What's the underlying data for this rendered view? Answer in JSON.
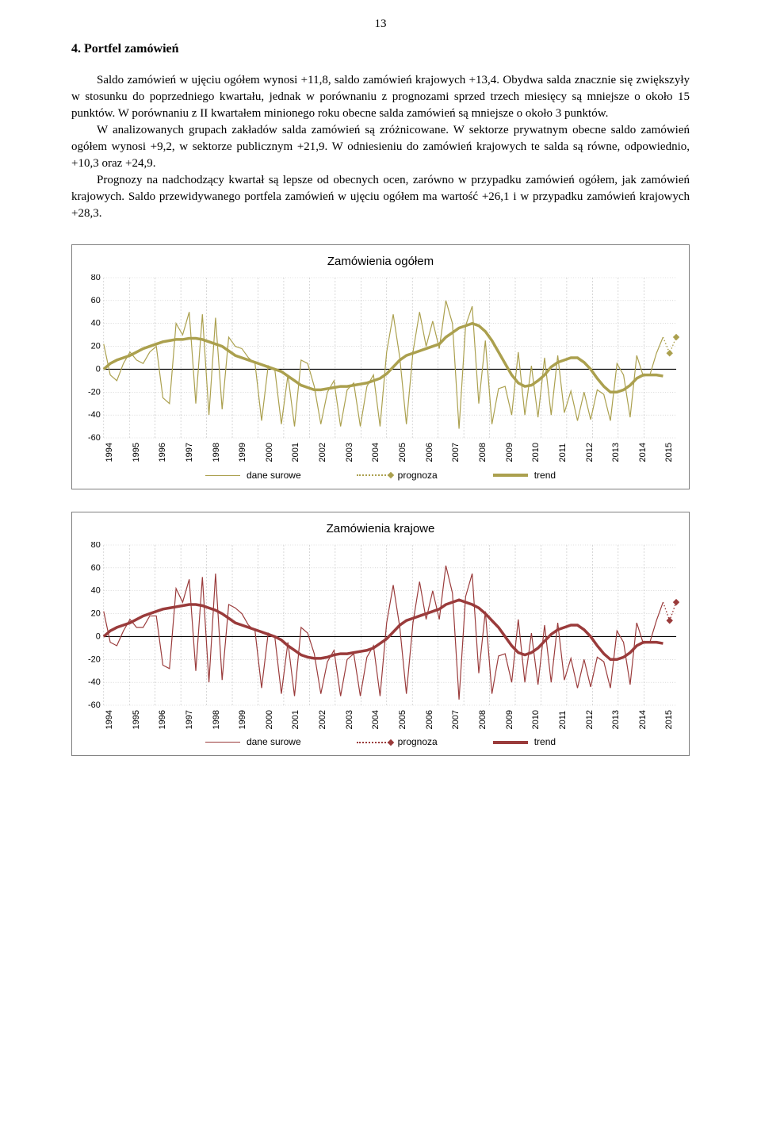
{
  "page_number": "13",
  "section_title": "4. Portfel zamówień",
  "paragraphs": [
    "Saldo zamówień w ujęciu ogółem wynosi +11,8, saldo zamówień krajowych +13,4. Obydwa salda znacznie się zwiększyły w stosunku do poprzedniego kwartału, jednak w porównaniu z prognozami sprzed trzech miesięcy są mniejsze o około 15 punktów. W porównaniu z II kwartałem minionego roku obecne salda zamówień są mniejsze o około 3 punktów.",
    "W analizowanych grupach zakładów salda zamówień są zróżnicowane. W sektorze prywatnym obecne saldo zamówień ogółem wynosi +9,2, w sektorze publicznym +21,9. W odniesieniu do zamówień krajowych te salda są równe, odpowiednio, +10,3 oraz +24,9.",
    "Prognozy na nadchodzący kwartał są lepsze od obecnych ocen, zarówno w przypadku zamówień ogółem, jak zamówień krajowych. Saldo przewidywanego portfela zamówień w ujęciu ogółem ma wartość +26,1 i w przypadku zamówień krajowych +28,3."
  ],
  "charts": [
    {
      "id": "chart1",
      "title": "Zamówienia ogółem",
      "type": "line",
      "colors": {
        "line": "#aba04e",
        "trend": "#aba04e",
        "forecast": "#aba04e",
        "grid": "#bfbfbf",
        "axis": "#000000",
        "bg": "#ffffff"
      },
      "ylim": [
        -60,
        80
      ],
      "yticks": [
        80,
        60,
        40,
        20,
        0,
        -20,
        -40,
        -60
      ],
      "years": [
        "1994",
        "1995",
        "1996",
        "1997",
        "1998",
        "1999",
        "2000",
        "2001",
        "2002",
        "2003",
        "2004",
        "2005",
        "2006",
        "2007",
        "2008",
        "2009",
        "2010",
        "2011",
        "2012",
        "2013",
        "2014",
        "2015"
      ],
      "raw": [
        22,
        -5,
        -10,
        5,
        15,
        8,
        5,
        15,
        20,
        -25,
        -30,
        40,
        30,
        50,
        -30,
        48,
        -40,
        45,
        -35,
        28,
        20,
        18,
        10,
        5,
        -45,
        3,
        0,
        -48,
        -5,
        -50,
        8,
        5,
        -15,
        -48,
        -20,
        -10,
        -50,
        -18,
        -12,
        -50,
        -15,
        -5,
        -50,
        15,
        48,
        10,
        -48,
        15,
        50,
        20,
        42,
        18,
        60,
        40,
        -52,
        38,
        55,
        -30,
        25,
        -48,
        -17,
        -15,
        -40,
        15,
        -40,
        3,
        -42,
        10,
        -40,
        12,
        -38,
        -19,
        -45,
        -20,
        -44,
        -18,
        -22,
        -45,
        5,
        -5,
        -42,
        12,
        -6,
        -5,
        14,
        28
      ],
      "trend": [
        0,
        5,
        8,
        10,
        12,
        15,
        18,
        20,
        22,
        24,
        25,
        26,
        26,
        27,
        27,
        26,
        24,
        22,
        20,
        16,
        12,
        10,
        8,
        6,
        4,
        2,
        0,
        -2,
        -6,
        -10,
        -14,
        -16,
        -18,
        -18,
        -17,
        -16,
        -15,
        -15,
        -14,
        -13,
        -12,
        -10,
        -8,
        -4,
        2,
        8,
        12,
        14,
        16,
        18,
        20,
        22,
        28,
        32,
        36,
        38,
        40,
        38,
        33,
        25,
        15,
        5,
        -5,
        -12,
        -15,
        -14,
        -10,
        -5,
        2,
        6,
        8,
        10,
        10,
        6,
        0,
        -8,
        -15,
        -20,
        -20,
        -18,
        -14,
        -8,
        -5,
        -5,
        -5,
        -6
      ],
      "forecast": [
        14,
        28
      ]
    },
    {
      "id": "chart2",
      "title": "Zamówienia krajowe",
      "type": "line",
      "colors": {
        "line": "#9a3b3b",
        "trend": "#9a3b3b",
        "forecast": "#9a3b3b",
        "grid": "#bfbfbf",
        "axis": "#000000",
        "bg": "#ffffff"
      },
      "ylim": [
        -60,
        80
      ],
      "yticks": [
        80,
        60,
        40,
        20,
        0,
        -20,
        -40,
        -60
      ],
      "years": [
        "1994",
        "1995",
        "1996",
        "1997",
        "1998",
        "1999",
        "2000",
        "2001",
        "2002",
        "2003",
        "2004",
        "2005",
        "2006",
        "2007",
        "2008",
        "2009",
        "2010",
        "2011",
        "2012",
        "2013",
        "2014",
        "2015"
      ],
      "raw": [
        22,
        -5,
        -8,
        5,
        15,
        8,
        8,
        18,
        18,
        -25,
        -28,
        42,
        30,
        50,
        -30,
        52,
        -40,
        55,
        -38,
        28,
        25,
        20,
        10,
        5,
        -45,
        3,
        0,
        -50,
        -5,
        -52,
        8,
        3,
        -15,
        -50,
        -22,
        -12,
        -52,
        -20,
        -15,
        -52,
        -18,
        -8,
        -52,
        12,
        45,
        8,
        -50,
        12,
        48,
        15,
        40,
        15,
        62,
        38,
        -55,
        35,
        55,
        -32,
        22,
        -50,
        -17,
        -15,
        -40,
        15,
        -40,
        3,
        -42,
        10,
        -40,
        12,
        -38,
        -19,
        -45,
        -20,
        -44,
        -18,
        -22,
        -45,
        5,
        -5,
        -42,
        12,
        -6,
        -5,
        14,
        30
      ],
      "trend": [
        0,
        5,
        8,
        10,
        12,
        15,
        18,
        20,
        22,
        24,
        25,
        26,
        27,
        28,
        28,
        27,
        25,
        23,
        20,
        16,
        12,
        10,
        8,
        6,
        4,
        2,
        0,
        -3,
        -8,
        -12,
        -16,
        -18,
        -19,
        -19,
        -18,
        -16,
        -15,
        -15,
        -14,
        -13,
        -12,
        -10,
        -6,
        -2,
        4,
        10,
        14,
        16,
        18,
        20,
        22,
        24,
        28,
        30,
        32,
        30,
        28,
        25,
        20,
        14,
        8,
        0,
        -8,
        -14,
        -16,
        -14,
        -10,
        -4,
        2,
        6,
        8,
        10,
        10,
        6,
        0,
        -8,
        -15,
        -20,
        -20,
        -18,
        -14,
        -8,
        -5,
        -5,
        -5,
        -6
      ],
      "forecast": [
        14,
        30
      ]
    }
  ],
  "legend_labels": {
    "raw": "dane surowe",
    "forecast": "prognoza",
    "trend": "trend"
  }
}
